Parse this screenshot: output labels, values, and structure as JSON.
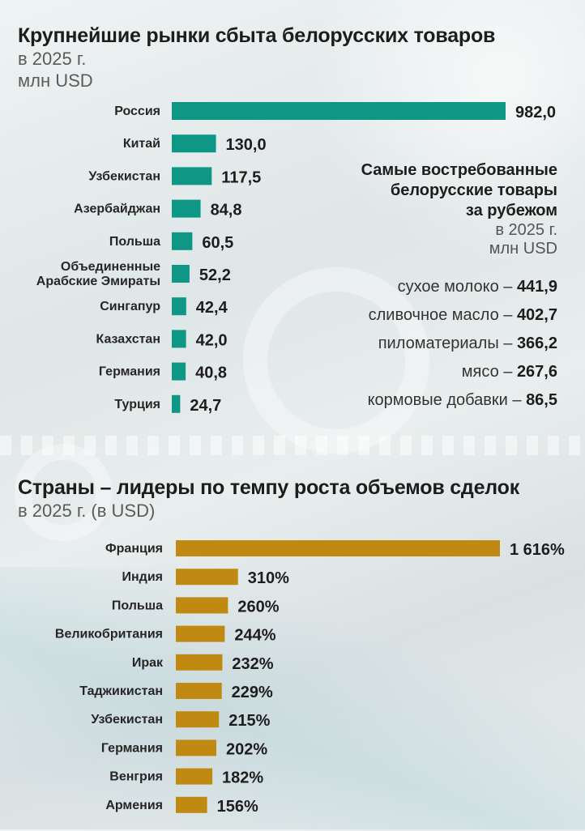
{
  "colors": {
    "teal": "#0d9784",
    "gold": "#c08a12"
  },
  "section1": {
    "title": "Крупнейшие рынки сбыта белорусских товаров",
    "subtitle_year": "в 2025 г.",
    "subtitle_unit": "млн USD"
  },
  "goods": {
    "title_lines": [
      "Самые востребованные",
      "белорусские товары",
      "за рубежом"
    ],
    "subtitle_year": "в 2025 г.",
    "subtitle_unit": "млн USD",
    "items": [
      {
        "name": "сухое молоко –",
        "value": "441,9"
      },
      {
        "name": "сливочное масло –",
        "value": "402,7"
      },
      {
        "name": "пиломатериалы –",
        "value": "366,2"
      },
      {
        "name": "мясо –",
        "value": "267,6"
      },
      {
        "name": "кормовые добавки –",
        "value": "86,5"
      }
    ]
  },
  "section2": {
    "title": "Страны – лидеры по темпу роста объемов сделок",
    "subtitle": "в 2025 г. (в USD)"
  },
  "chart_data": [
    {
      "type": "bar",
      "orientation": "horizontal",
      "title": "Крупнейшие рынки сбыта белорусских товаров",
      "unit": "млн USD",
      "categories": [
        [
          "Россия"
        ],
        [
          "Китай"
        ],
        [
          "Узбекистан"
        ],
        [
          "Азербайджан"
        ],
        [
          "Польша"
        ],
        [
          "Объединенные",
          "Арабские Эмираты"
        ],
        [
          "Сингапур"
        ],
        [
          "Казахстан"
        ],
        [
          "Германия"
        ],
        [
          "Турция"
        ]
      ],
      "values": [
        982.0,
        130.0,
        117.5,
        84.8,
        60.5,
        52.2,
        42.4,
        42.0,
        40.8,
        24.7
      ],
      "value_labels": [
        "982,0",
        "130,0",
        "117,5",
        "84,8",
        "60,5",
        "52,2",
        "42,4",
        "42,0",
        "40,8",
        "24,7"
      ],
      "xlim": [
        0,
        982
      ]
    },
    {
      "type": "bar",
      "orientation": "horizontal",
      "title": "Страны – лидеры по темпу роста объемов сделок",
      "unit": "%",
      "categories": [
        [
          "Франция"
        ],
        [
          "Индия"
        ],
        [
          "Польша"
        ],
        [
          "Великобритания"
        ],
        [
          "Ирак"
        ],
        [
          "Таджикистан"
        ],
        [
          "Узбекистан"
        ],
        [
          "Германия"
        ],
        [
          "Венгрия"
        ],
        [
          "Армения"
        ]
      ],
      "values": [
        1616,
        310,
        260,
        244,
        232,
        229,
        215,
        202,
        182,
        156
      ],
      "value_labels": [
        "1 616%",
        "310%",
        "260%",
        "244%",
        "232%",
        "229%",
        "215%",
        "202%",
        "182%",
        "156%"
      ],
      "xlim": [
        0,
        1616
      ]
    }
  ]
}
